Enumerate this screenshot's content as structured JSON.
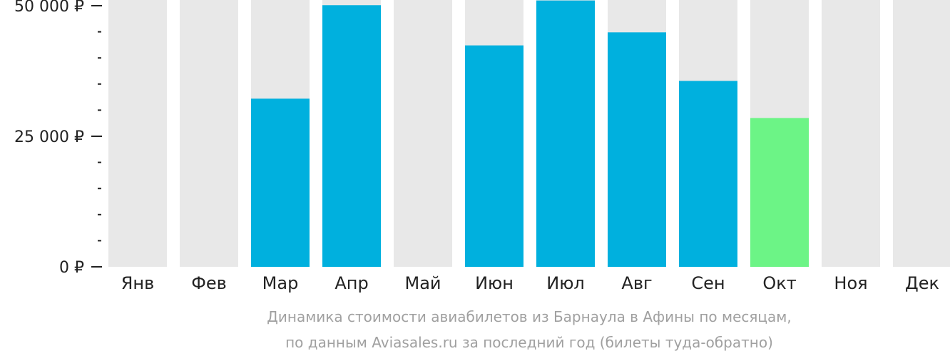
{
  "chart_data": {
    "type": "bar",
    "categories": [
      "Янв",
      "Фев",
      "Мар",
      "Апр",
      "Май",
      "Июн",
      "Июл",
      "Авг",
      "Сен",
      "Окт",
      "Ноя",
      "Дек"
    ],
    "values": [
      null,
      null,
      32200,
      50100,
      null,
      42400,
      51000,
      44900,
      35600,
      28500,
      null,
      null
    ],
    "ylim": [
      0,
      50000
    ],
    "y_ticks": [
      {
        "value": 0,
        "label": "0 ₽"
      },
      {
        "value": 25000,
        "label": "25 000 ₽"
      },
      {
        "value": 50000,
        "label": "50 000 ₽"
      }
    ],
    "y_minor_ticks": [
      5000,
      10000,
      15000,
      20000,
      30000,
      35000,
      40000,
      45000
    ],
    "highlight_category": "Окт",
    "colors": {
      "bar": "#00b0de",
      "highlight": "#6cf486",
      "background_column": "#e8e8e8",
      "axis_text": "#222222",
      "caption_text": "#a0a0a0"
    },
    "caption_lines": [
      "Динамика стоимости авиабилетов из Барнаула в Афины по месяцам,",
      "по данным Aviasales.ru за последний год (билеты туда-обратно)"
    ]
  }
}
